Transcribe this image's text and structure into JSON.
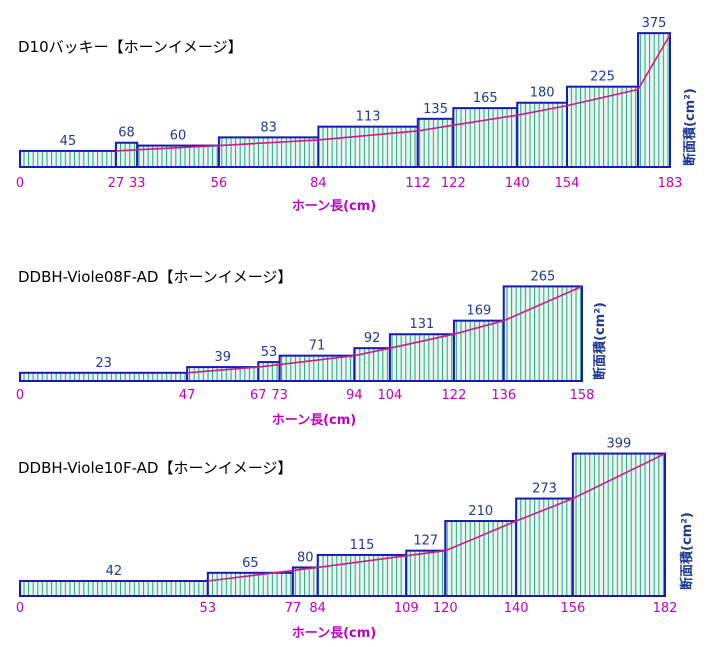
{
  "colors": {
    "bar_outline": "#1a1ab0",
    "hatch": "#2e9e7e",
    "fill": "#e6f6f0",
    "horn_line": "#d01a86",
    "value_text": "#1f3a93",
    "tick_text": "#c000c0"
  },
  "chart_data": [
    {
      "type": "bar",
      "title": "D10バッキー【ホーンイメージ】",
      "xlabel": "ホーン長(cm)",
      "ylabel": "断面積(cm²)",
      "xlim": [
        0,
        183
      ],
      "edges": [
        0,
        27,
        33,
        56,
        84,
        112,
        122,
        140,
        154,
        174,
        183
      ],
      "values": [
        45,
        68,
        60,
        83,
        113,
        135,
        165,
        180,
        225,
        375
      ],
      "ticks": [
        0,
        27,
        33,
        56,
        84,
        112,
        122,
        140,
        154,
        183
      ],
      "horn_line": {
        "x": [
          27,
          56,
          84,
          112,
          122,
          140,
          154,
          174,
          183
        ],
        "y": [
          45,
          60,
          76,
          101,
          117,
          145,
          172,
          217,
          370
        ]
      }
    },
    {
      "type": "bar",
      "title": "DDBH-Viole08F-AD【ホーンイメージ】",
      "xlabel": "ホーン長(cm)",
      "ylabel": "断面積(cm²)",
      "xlim": [
        0,
        158
      ],
      "edges": [
        0,
        47,
        67,
        73,
        94,
        104,
        122,
        136,
        158
      ],
      "values": [
        23,
        39,
        53,
        71,
        92,
        131,
        169,
        265
      ],
      "ticks": [
        0,
        47,
        67,
        73,
        94,
        104,
        122,
        136,
        158
      ],
      "horn_line": {
        "x": [
          47,
          67,
          94,
          104,
          122,
          136,
          158
        ],
        "y": [
          23,
          39,
          71,
          92,
          131,
          169,
          265
        ]
      }
    },
    {
      "type": "bar",
      "title": "DDBH-Viole10F-AD【ホーンイメージ】",
      "xlabel": "ホーン長(cm)",
      "ylabel": "断面積(cm²)",
      "xlim": [
        0,
        182
      ],
      "edges": [
        0,
        53,
        77,
        84,
        109,
        120,
        140,
        156,
        182
      ],
      "values": [
        42,
        65,
        80,
        115,
        127,
        210,
        273,
        399
      ],
      "ticks": [
        0,
        53,
        77,
        84,
        109,
        120,
        140,
        156,
        182
      ],
      "horn_line": {
        "x": [
          53,
          84,
          120,
          140,
          156,
          182
        ],
        "y": [
          42,
          80,
          127,
          210,
          273,
          399
        ]
      }
    }
  ]
}
